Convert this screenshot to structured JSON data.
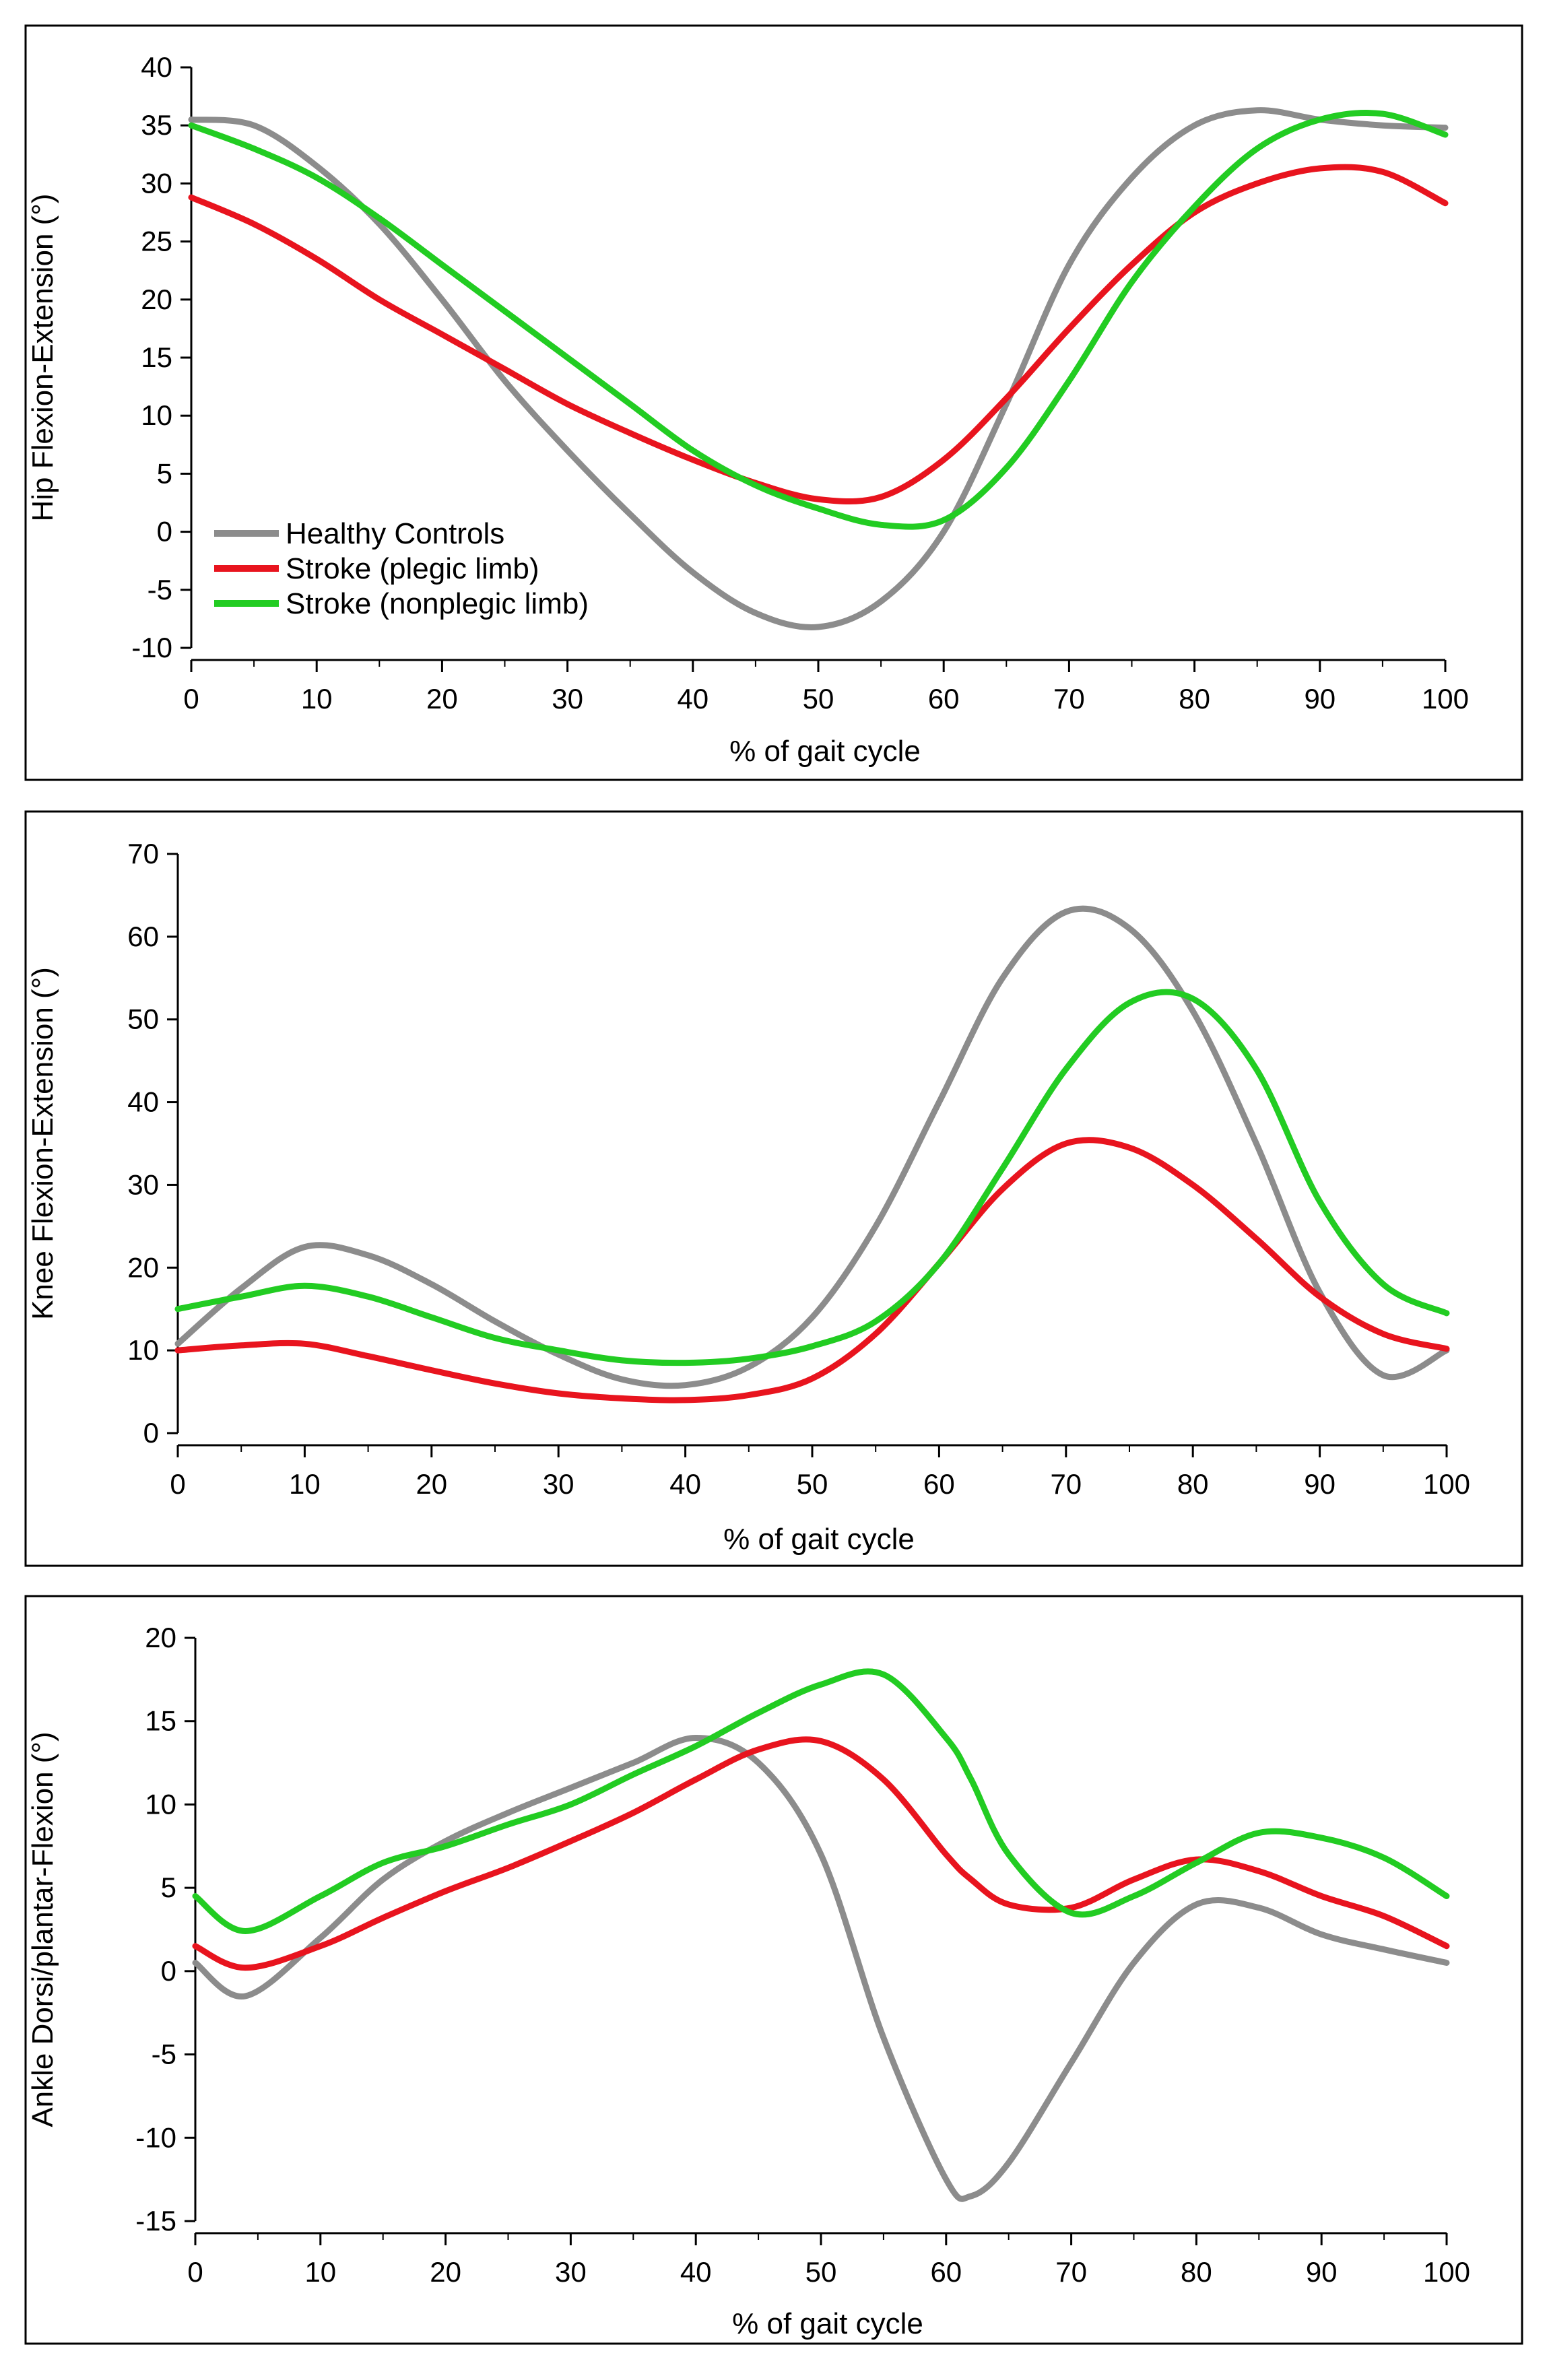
{
  "legend": {
    "entries": [
      {
        "name": "Healthy Controls",
        "color": "#8c8c8c"
      },
      {
        "name": "Stroke (plegic limb)",
        "color": "#e8141e"
      },
      {
        "name": "Stroke (nonplegic limb)",
        "color": "#22cc22"
      }
    ],
    "placement": "lower-left of top panel"
  },
  "chart_data": [
    {
      "type": "line",
      "title": "",
      "xlabel": "% of gait cycle",
      "ylabel": "Hip Flexion-Extension (°)",
      "xlim": [
        0,
        100
      ],
      "ylim": [
        -10,
        40
      ],
      "xticks": [
        0,
        10,
        20,
        30,
        40,
        50,
        60,
        70,
        80,
        90,
        100
      ],
      "yticks": [
        -10,
        -5,
        0,
        5,
        10,
        15,
        20,
        25,
        30,
        35,
        40
      ],
      "x": [
        0,
        5,
        10,
        15,
        20,
        25,
        30,
        35,
        40,
        45,
        50,
        55,
        60,
        65,
        70,
        75,
        80,
        85,
        90,
        95,
        100
      ],
      "series": [
        {
          "name": "Healthy Controls",
          "values": [
            35.5,
            35,
            31.5,
            26.5,
            20,
            13,
            7,
            1.5,
            -3.5,
            -7,
            -8.2,
            -6,
            0,
            11,
            23,
            30.5,
            35,
            36.3,
            35.5,
            35,
            34.8
          ]
        },
        {
          "name": "Stroke (plegic limb)",
          "values": [
            28.8,
            26.5,
            23.5,
            20,
            17,
            14,
            11,
            8.5,
            6.2,
            4.2,
            2.8,
            3,
            6.2,
            11.5,
            17.5,
            23,
            27.5,
            30,
            31.3,
            31,
            28.3
          ]
        },
        {
          "name": "Stroke (nonplegic limb)",
          "values": [
            35,
            33,
            30.5,
            27,
            23,
            19,
            15,
            11,
            7,
            4,
            2,
            0.6,
            1,
            5.5,
            13,
            21.5,
            28,
            33,
            35.5,
            36,
            34.2
          ]
        }
      ]
    },
    {
      "type": "line",
      "title": "",
      "xlabel": "% of gait cycle",
      "ylabel": "Knee Flexion-Extension (°)",
      "xlim": [
        0,
        100
      ],
      "ylim": [
        0,
        70
      ],
      "xticks": [
        0,
        10,
        20,
        30,
        40,
        50,
        60,
        70,
        80,
        90,
        100
      ],
      "yticks": [
        0,
        10,
        20,
        30,
        40,
        50,
        60,
        70
      ],
      "x": [
        0,
        5,
        10,
        15,
        20,
        25,
        30,
        35,
        40,
        45,
        50,
        55,
        60,
        65,
        70,
        75,
        80,
        85,
        90,
        95,
        100
      ],
      "series": [
        {
          "name": "Healthy Controls",
          "values": [
            10.8,
            17.5,
            22.5,
            21.5,
            18,
            13.5,
            9.5,
            6.5,
            5.8,
            8,
            14,
            25,
            40,
            55,
            63,
            61,
            51,
            35,
            17,
            7,
            10
          ]
        },
        {
          "name": "Stroke (plegic limb)",
          "values": [
            10,
            10.6,
            10.8,
            9.3,
            7.6,
            6,
            4.8,
            4.2,
            4,
            4.6,
            6.6,
            12,
            20.5,
            29.5,
            35,
            34.5,
            30,
            23.5,
            16.5,
            12,
            10.2
          ]
        },
        {
          "name": "Stroke (nonplegic limb)",
          "values": [
            15,
            16.5,
            17.8,
            16.5,
            14,
            11.5,
            10,
            8.8,
            8.5,
            9,
            10.5,
            13.5,
            20.5,
            32,
            44,
            52,
            52.5,
            44,
            28,
            18,
            14.5
          ]
        }
      ]
    },
    {
      "type": "line",
      "title": "",
      "xlabel": "% of gait cycle",
      "ylabel": "Ankle Dorsi/plantar-Flexion (°)",
      "xlim": [
        0,
        100
      ],
      "ylim": [
        -15,
        20
      ],
      "xticks": [
        0,
        10,
        20,
        30,
        40,
        50,
        60,
        70,
        80,
        90,
        100
      ],
      "yticks": [
        -15,
        -10,
        -5,
        0,
        5,
        10,
        15,
        20
      ],
      "x": [
        0,
        4,
        10,
        15,
        20,
        25,
        30,
        35,
        40,
        45,
        50,
        55,
        60,
        62,
        65,
        70,
        75,
        80,
        85,
        90,
        95,
        100
      ],
      "series": [
        {
          "name": "Healthy Controls",
          "values": [
            0.5,
            -1.5,
            2,
            5.5,
            7.8,
            9.5,
            11,
            12.5,
            14,
            12.5,
            7,
            -4,
            -12.5,
            -13.5,
            -11.5,
            -5.5,
            0.5,
            4,
            3.8,
            2.2,
            1.3,
            0.5
          ]
        },
        {
          "name": "Stroke (plegic limb)",
          "values": [
            1.5,
            0.2,
            1.5,
            3.2,
            4.8,
            6.2,
            7.8,
            9.5,
            11.5,
            13.3,
            13.8,
            11.5,
            7,
            5.5,
            4,
            3.8,
            5.5,
            6.7,
            6,
            4.5,
            3.3,
            1.5
          ]
        },
        {
          "name": "Stroke (nonplegic limb)",
          "values": [
            4.5,
            2.4,
            4.5,
            6.5,
            7.5,
            8.8,
            10,
            11.8,
            13.5,
            15.5,
            17.2,
            17.8,
            14,
            11.5,
            7,
            3.5,
            4.5,
            6.5,
            8.3,
            8,
            6.8,
            4.5
          ]
        }
      ]
    }
  ]
}
